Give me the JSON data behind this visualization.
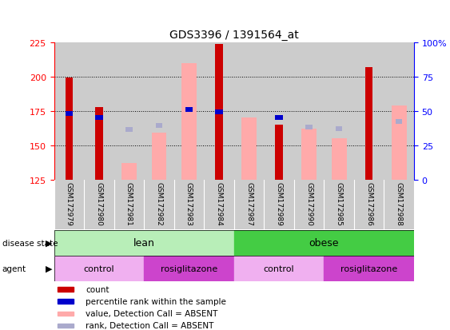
{
  "title": "GDS3396 / 1391564_at",
  "samples": [
    "GSM172979",
    "GSM172980",
    "GSM172981",
    "GSM172982",
    "GSM172983",
    "GSM172984",
    "GSM172987",
    "GSM172989",
    "GSM172990",
    "GSM172985",
    "GSM172986",
    "GSM172988"
  ],
  "ylim_left": [
    125,
    225
  ],
  "ylim_right": [
    0,
    100
  ],
  "yticks_left": [
    125,
    150,
    175,
    200,
    225
  ],
  "yticks_right": [
    0,
    25,
    50,
    75,
    100
  ],
  "count_values": [
    199,
    178,
    null,
    null,
    null,
    224,
    null,
    165,
    null,
    null,
    207,
    null
  ],
  "rank_values": [
    173,
    170,
    null,
    null,
    176,
    174,
    null,
    170,
    null,
    null,
    null,
    null
  ],
  "value_absent": [
    null,
    null,
    137,
    159,
    210,
    null,
    170,
    null,
    162,
    155,
    null,
    179
  ],
  "rank_absent": [
    null,
    null,
    161,
    164,
    176,
    null,
    null,
    null,
    163,
    162,
    null,
    167
  ],
  "bar_width": 0.5,
  "count_color": "#cc0000",
  "rank_color": "#0000cc",
  "value_absent_color": "#ffaaaa",
  "rank_absent_color": "#aaaacc",
  "disease_state_groups": [
    {
      "label": "lean",
      "start": 0,
      "end": 6,
      "color": "#b8eeb8"
    },
    {
      "label": "obese",
      "start": 6,
      "end": 12,
      "color": "#44cc44"
    }
  ],
  "agent_groups": [
    {
      "label": "control",
      "start": 0,
      "end": 3,
      "color": "#f0b0f0"
    },
    {
      "label": "rosiglitazone",
      "start": 3,
      "end": 6,
      "color": "#cc44cc"
    },
    {
      "label": "control",
      "start": 6,
      "end": 9,
      "color": "#f0b0f0"
    },
    {
      "label": "rosiglitazone",
      "start": 9,
      "end": 12,
      "color": "#cc44cc"
    }
  ],
  "legend_items": [
    {
      "label": "count",
      "color": "#cc0000"
    },
    {
      "label": "percentile rank within the sample",
      "color": "#0000cc"
    },
    {
      "label": "value, Detection Call = ABSENT",
      "color": "#ffaaaa"
    },
    {
      "label": "rank, Detection Call = ABSENT",
      "color": "#aaaacc"
    }
  ],
  "sample_bg_color": "#cccccc",
  "base_value": 125
}
